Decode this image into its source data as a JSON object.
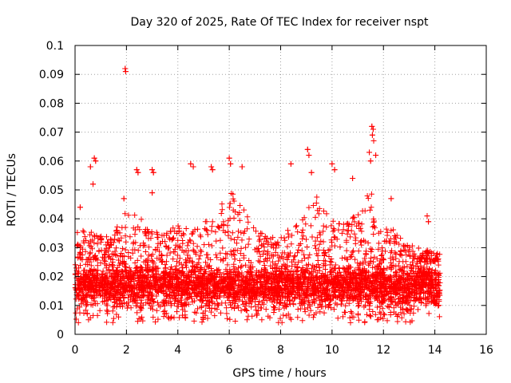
{
  "chart_data": {
    "type": "scatter",
    "title": "Day 320 of 2025, Rate Of TEC Index for receiver nspt",
    "xlabel": "GPS time / hours",
    "ylabel": "ROTI / TECUs",
    "xlim": [
      0,
      16
    ],
    "ylim": [
      0,
      0.1
    ],
    "x_ticks": [
      0,
      2,
      4,
      6,
      8,
      10,
      12,
      14,
      16
    ],
    "y_ticks": [
      0,
      0.01,
      0.02,
      0.03,
      0.04,
      0.05,
      0.06,
      0.07,
      0.08,
      0.09,
      0.1
    ],
    "x_tick_labels": [
      "0",
      "2",
      "4",
      "6",
      "8",
      "10",
      "12",
      "14",
      "16"
    ],
    "y_tick_labels": [
      "0",
      "0.01",
      "0.02",
      "0.03",
      "0.04",
      "0.05",
      "0.06",
      "0.07",
      "0.08",
      "0.09",
      "0.1"
    ],
    "grid": true,
    "marker": "+",
    "color": "#ff0000",
    "series": [
      {
        "name": "ROTI",
        "data_range_hours": [
          0,
          14.2
        ],
        "baseline_band": [
          0.006,
          0.025
        ],
        "notable_points": [
          {
            "x": 1.95,
            "y": 0.092
          },
          {
            "x": 1.97,
            "y": 0.091
          },
          {
            "x": 0.75,
            "y": 0.061
          },
          {
            "x": 0.8,
            "y": 0.06
          },
          {
            "x": 0.6,
            "y": 0.058
          },
          {
            "x": 0.7,
            "y": 0.052
          },
          {
            "x": 2.4,
            "y": 0.057
          },
          {
            "x": 2.45,
            "y": 0.056
          },
          {
            "x": 3.0,
            "y": 0.057
          },
          {
            "x": 3.05,
            "y": 0.056
          },
          {
            "x": 3.0,
            "y": 0.049
          },
          {
            "x": 4.5,
            "y": 0.059
          },
          {
            "x": 4.6,
            "y": 0.058
          },
          {
            "x": 5.3,
            "y": 0.058
          },
          {
            "x": 5.35,
            "y": 0.057
          },
          {
            "x": 6.0,
            "y": 0.061
          },
          {
            "x": 6.05,
            "y": 0.059
          },
          {
            "x": 6.5,
            "y": 0.058
          },
          {
            "x": 8.4,
            "y": 0.059
          },
          {
            "x": 9.05,
            "y": 0.064
          },
          {
            "x": 9.1,
            "y": 0.062
          },
          {
            "x": 9.2,
            "y": 0.056
          },
          {
            "x": 10.0,
            "y": 0.059
          },
          {
            "x": 10.1,
            "y": 0.057
          },
          {
            "x": 10.8,
            "y": 0.054
          },
          {
            "x": 11.55,
            "y": 0.072
          },
          {
            "x": 11.6,
            "y": 0.071
          },
          {
            "x": 11.57,
            "y": 0.069
          },
          {
            "x": 11.62,
            "y": 0.067
          },
          {
            "x": 11.45,
            "y": 0.063
          },
          {
            "x": 11.5,
            "y": 0.06
          },
          {
            "x": 11.7,
            "y": 0.062
          },
          {
            "x": 12.3,
            "y": 0.047
          },
          {
            "x": 13.7,
            "y": 0.041
          },
          {
            "x": 13.75,
            "y": 0.039
          },
          {
            "x": 0.2,
            "y": 0.044
          },
          {
            "x": 1.9,
            "y": 0.047
          }
        ],
        "envelope": [
          {
            "x": 0.5,
            "ymax": 0.036
          },
          {
            "x": 1.0,
            "ymax": 0.034
          },
          {
            "x": 1.5,
            "ymax": 0.036
          },
          {
            "x": 2.0,
            "ymax": 0.043
          },
          {
            "x": 2.5,
            "ymax": 0.041
          },
          {
            "x": 3.0,
            "ymax": 0.036
          },
          {
            "x": 3.5,
            "ymax": 0.035
          },
          {
            "x": 4.0,
            "ymax": 0.038
          },
          {
            "x": 4.5,
            "ymax": 0.036
          },
          {
            "x": 5.0,
            "ymax": 0.039
          },
          {
            "x": 5.5,
            "ymax": 0.042
          },
          {
            "x": 6.0,
            "ymax": 0.05
          },
          {
            "x": 6.5,
            "ymax": 0.045
          },
          {
            "x": 7.0,
            "ymax": 0.036
          },
          {
            "x": 7.5,
            "ymax": 0.034
          },
          {
            "x": 8.0,
            "ymax": 0.034
          },
          {
            "x": 8.5,
            "ymax": 0.038
          },
          {
            "x": 9.0,
            "ymax": 0.044
          },
          {
            "x": 9.3,
            "ymax": 0.05
          },
          {
            "x": 9.6,
            "ymax": 0.044
          },
          {
            "x": 10.0,
            "ymax": 0.04
          },
          {
            "x": 10.5,
            "ymax": 0.038
          },
          {
            "x": 11.0,
            "ymax": 0.042
          },
          {
            "x": 11.5,
            "ymax": 0.05
          },
          {
            "x": 12.0,
            "ymax": 0.037
          },
          {
            "x": 12.5,
            "ymax": 0.036
          },
          {
            "x": 13.0,
            "ymax": 0.031
          },
          {
            "x": 13.5,
            "ymax": 0.03
          },
          {
            "x": 14.0,
            "ymax": 0.028
          }
        ]
      }
    ]
  }
}
